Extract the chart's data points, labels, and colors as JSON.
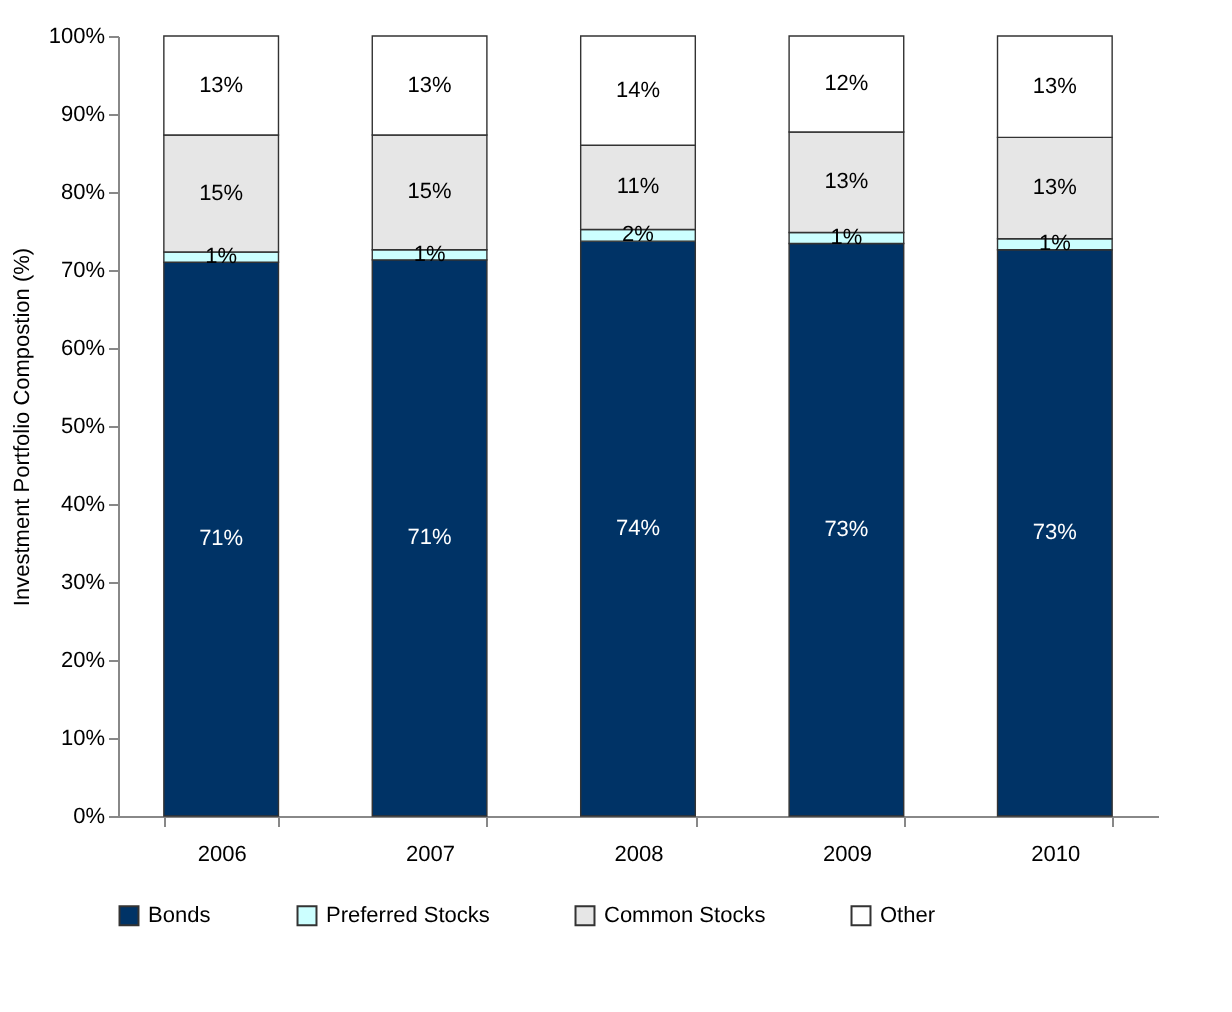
{
  "chart_data": {
    "type": "bar",
    "stacked": true,
    "ylabel": "Investment Portfolio Compostion (%)",
    "categories": [
      "2006",
      "2007",
      "2008",
      "2009",
      "2010"
    ],
    "series": [
      {
        "name": "Bonds",
        "color": "#003366",
        "values": [
          71.0,
          71.3,
          73.7,
          73.4,
          72.6
        ],
        "value_labels": [
          "71%",
          "71%",
          "74%",
          "73%",
          "73%"
        ]
      },
      {
        "name": "Preferred Stocks",
        "color": "#ccffff",
        "values": [
          1.3,
          1.3,
          1.5,
          1.4,
          1.4
        ],
        "value_labels": [
          "1%",
          "1%",
          "2%",
          "1%",
          "1%"
        ]
      },
      {
        "name": "Common Stocks",
        "color": "#e6e6e6",
        "values": [
          15.0,
          14.7,
          10.8,
          12.9,
          13.0
        ],
        "value_labels": [
          "15%",
          "15%",
          "11%",
          "13%",
          "13%"
        ]
      },
      {
        "name": "Other",
        "color": "#ffffff",
        "values": [
          12.7,
          12.7,
          14.0,
          12.3,
          13.0
        ],
        "value_labels": [
          "13%",
          "13%",
          "14%",
          "12%",
          "13%"
        ]
      }
    ],
    "ylim": [
      0,
      100
    ],
    "yticks": [
      {
        "value": 0,
        "label": "0%"
      },
      {
        "value": 10,
        "label": "10%"
      },
      {
        "value": 20,
        "label": "20%"
      },
      {
        "value": 30,
        "label": "30%"
      },
      {
        "value": 40,
        "label": "40%"
      },
      {
        "value": 50,
        "label": "50%"
      },
      {
        "value": 60,
        "label": "60%"
      },
      {
        "value": 70,
        "label": "70%"
      },
      {
        "value": 80,
        "label": "80%"
      },
      {
        "value": 90,
        "label": "90%"
      },
      {
        "value": 100,
        "label": "100%"
      }
    ],
    "grid": false,
    "legend": "bottom"
  }
}
